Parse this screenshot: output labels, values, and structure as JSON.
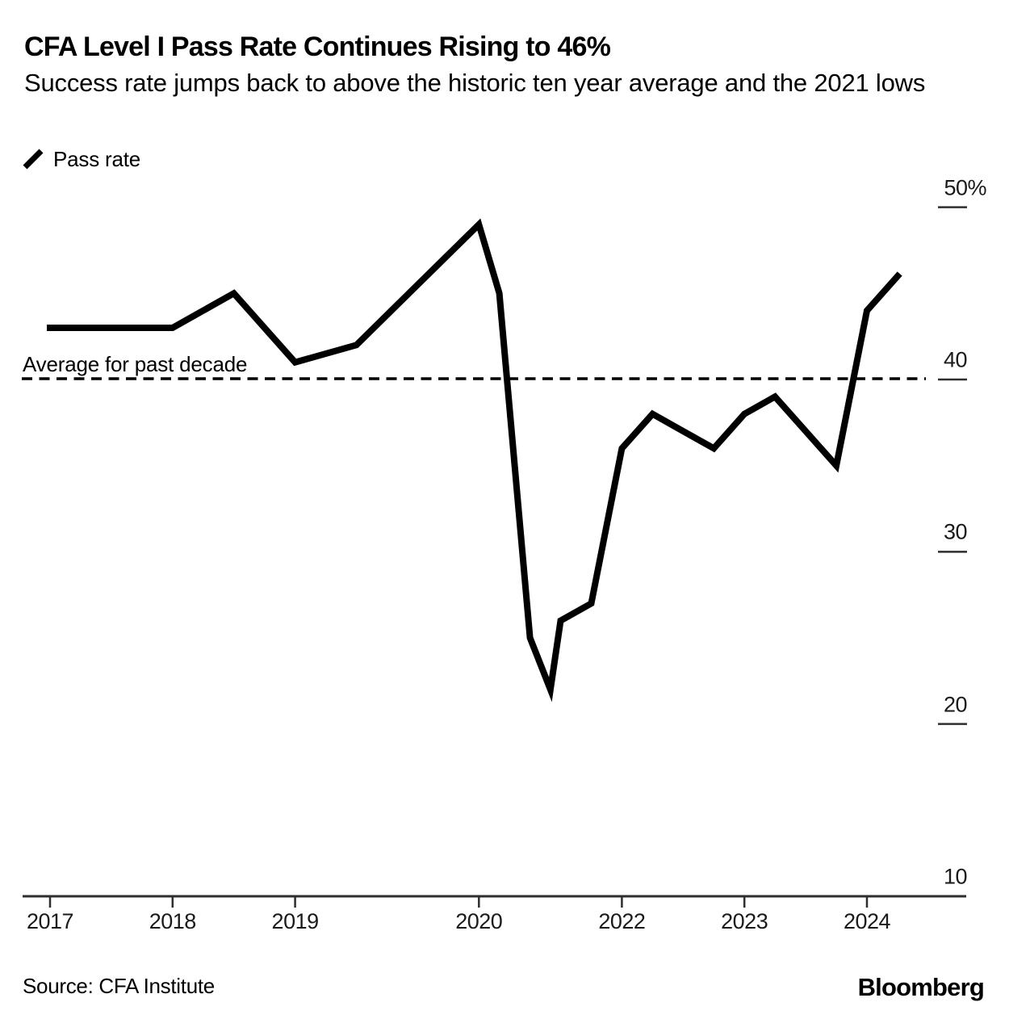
{
  "header": {
    "title": "CFA Level I Pass Rate Continues Rising to 46%",
    "subtitle": "Success rate jumps back to above the historic ten year average and the 2021 lows"
  },
  "legend": {
    "items": [
      {
        "label": "Pass rate"
      }
    ]
  },
  "footer": {
    "source": "Source: CFA Institute",
    "brand": "Bloomberg"
  },
  "colors": {
    "background": "#ffffff",
    "line": "#000000",
    "axis": "#2e2e2e",
    "dashed_line": "#000000",
    "text": "#000000"
  },
  "chart_data": {
    "type": "line",
    "title": "CFA Level I Pass Rate Continues Rising to 46%",
    "subtitle": "Success rate jumps back to above the historic ten year average and the 2021 lows",
    "unit": "%",
    "ylim": [
      10,
      50
    ],
    "legend_position": "top-left",
    "grid": "off",
    "y_axis_side": "right",
    "series": [
      {
        "name": "Pass rate",
        "points": [
          {
            "period": "Jun 2017",
            "m": 0,
            "value": 43
          },
          {
            "period": "Dec 2017",
            "m": 6,
            "value": 43
          },
          {
            "period": "Jun 2018",
            "m": 12,
            "value": 43
          },
          {
            "period": "Dec 2018",
            "m": 18,
            "value": 45
          },
          {
            "period": "Jun 2019",
            "m": 24,
            "value": 41
          },
          {
            "period": "Dec 2019",
            "m": 30,
            "value": 42
          },
          {
            "period": "Dec 2020",
            "m": 42,
            "value": 49
          },
          {
            "period": "Feb 2021",
            "m": 44,
            "value": 45
          },
          {
            "period": "May 2021",
            "m": 47,
            "value": 25
          },
          {
            "period": "Jul 2021",
            "m": 49,
            "value": 22
          },
          {
            "period": "Aug 2021",
            "m": 50,
            "value": 26
          },
          {
            "period": "Nov 2021",
            "m": 53,
            "value": 27
          },
          {
            "period": "Feb 2022",
            "m": 56,
            "value": 36
          },
          {
            "period": "May 2022",
            "m": 59,
            "value": 38
          },
          {
            "period": "Aug 2022",
            "m": 62,
            "value": 37
          },
          {
            "period": "Nov 2022",
            "m": 65,
            "value": 36
          },
          {
            "period": "Feb 2023",
            "m": 68,
            "value": 38
          },
          {
            "period": "May 2023",
            "m": 71,
            "value": 39
          },
          {
            "period": "Aug 2023",
            "m": 74,
            "value": 37
          },
          {
            "period": "Nov 2023",
            "m": 77,
            "value": 35
          },
          {
            "period": "Feb 2024",
            "m": 80,
            "value": 44
          },
          {
            "period": "May 2024",
            "m": 83,
            "value": 46
          }
        ]
      }
    ],
    "average_line": {
      "label": "Average for past decade",
      "value": 40
    },
    "x_ticks": [
      {
        "label": "2017",
        "m": 0
      },
      {
        "label": "2018",
        "m": 12
      },
      {
        "label": "2019",
        "m": 24
      },
      {
        "label": "2020",
        "m": 42
      },
      {
        "label": "2022",
        "m": 56
      },
      {
        "label": "2023",
        "m": 68
      },
      {
        "label": "2024",
        "m": 80
      }
    ],
    "y_ticks": [
      {
        "label": "50%",
        "value": 50
      },
      {
        "label": "40",
        "value": 40
      },
      {
        "label": "30",
        "value": 30
      },
      {
        "label": "20",
        "value": 20
      },
      {
        "label": "10",
        "value": 10
      }
    ]
  }
}
